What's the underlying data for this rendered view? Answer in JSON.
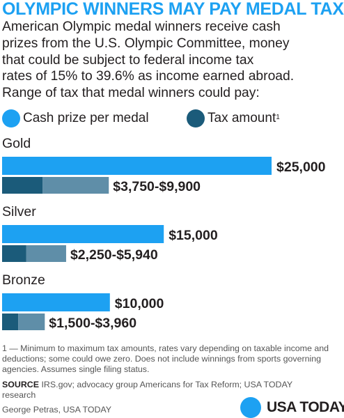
{
  "title": "OLYMPIC WINNERS MAY PAY MEDAL TAX",
  "intro_lines": [
    "American Olympic medal winners receive cash",
    "prizes from the U.S. Olympic Committee, money",
    "that could be subject to federal income tax",
    "rates of 15% to 39.6% as income earned abroad.",
    "Range of tax that medal winners could pay:"
  ],
  "legend": {
    "cash_label": "Cash prize per medal",
    "tax_label": "Tax amount",
    "tax_sup": "1"
  },
  "colors": {
    "title": "#1da1f2",
    "cash": "#1da1f2",
    "tax_min": "#1b5b7a",
    "tax_range": "#5f8ea8",
    "text": "#231f20",
    "footnote": "#555555"
  },
  "chart_data": {
    "type": "bar",
    "orientation": "horizontal",
    "categories": [
      "Gold",
      "Silver",
      "Bronze"
    ],
    "series": [
      {
        "name": "Cash prize per medal",
        "values": [
          25000,
          15000,
          10000
        ],
        "labels": [
          "$25,000",
          "$15,000",
          "$10,000"
        ]
      },
      {
        "name": "Tax amount",
        "min": [
          3750,
          2250,
          1500
        ],
        "max": [
          9900,
          5940,
          3960
        ],
        "labels": [
          "$3,750-$9,900",
          "$2,250-$5,940",
          "$1,500-$3,960"
        ]
      }
    ],
    "xlim": [
      0,
      25000
    ],
    "grid": false,
    "legend_position": "top-left"
  },
  "footnote": "1 — Minimum to maximum tax amounts, rates vary depending on taxable income and deductions; some could owe zero. Does not include winnings from sports governing agencies. Assumes single filing status.",
  "source": {
    "label": "SOURCE",
    "text": "IRS.gov; advocacy group Americans for Tax Reform; USA TODAY research"
  },
  "credit": "George Petras, USA TODAY",
  "logo_text": "USA TODAY"
}
